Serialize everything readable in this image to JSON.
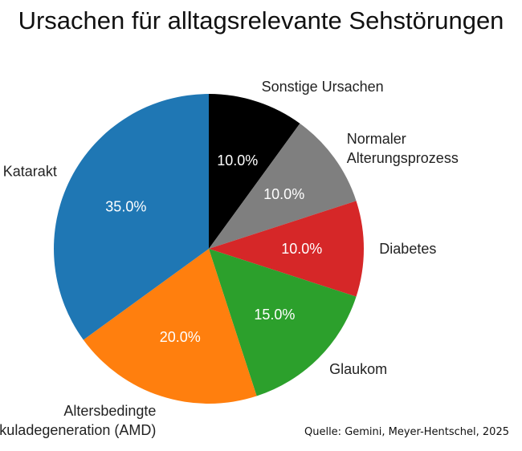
{
  "chart_data": {
    "type": "pie",
    "title": "Ursachen für alltagsrelevante Sehstörungen",
    "start": "top",
    "direction": "clockwise",
    "slices": [
      {
        "label": "Sonstige Ursachen",
        "value": 10.0,
        "pct_label": "10.0%",
        "color": "#000000"
      },
      {
        "label": "Normaler\nAlterungsprozess",
        "value": 10.0,
        "pct_label": "10.0%",
        "color": "#7f7f7f"
      },
      {
        "label": "Diabetes",
        "value": 10.0,
        "pct_label": "10.0%",
        "color": "#d62728"
      },
      {
        "label": "Glaukom",
        "value": 15.0,
        "pct_label": "15.0%",
        "color": "#2ca02c"
      },
      {
        "label": "Altersbedingte\nMakuladegeneration (AMD)",
        "value": 20.0,
        "pct_label": "20.0%",
        "color": "#ff7f0e"
      },
      {
        "label": "Katarakt",
        "value": 35.0,
        "pct_label": "35.0%",
        "color": "#1f77b4"
      }
    ]
  },
  "source": "Quelle: Gemini, Meyer-Hentschel, 2025"
}
